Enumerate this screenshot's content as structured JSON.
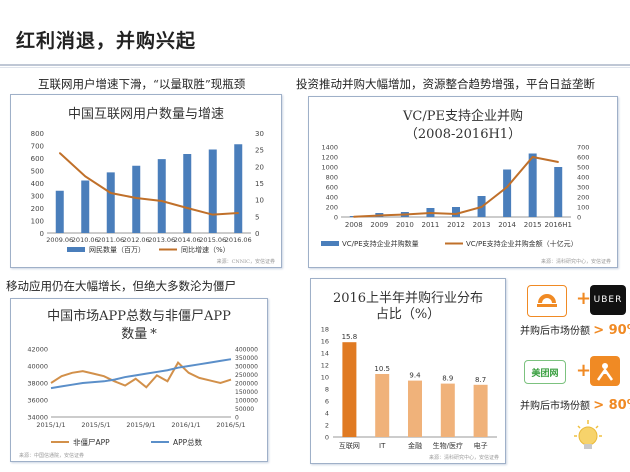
{
  "page": {
    "title": "红利消退，并购兴起",
    "captions": {
      "top_left": "互联网用户增速下滑，“以量取胜”现瓶颈",
      "top_right": "投资推动并购大幅增加，资源整合趋势增强，平台日益垄断",
      "bottom_left": "移动应用仍在大幅增长，但绝大多数沦为僵尸"
    },
    "sources": {
      "c1": "来源：CNNIC，安信证券",
      "c2": "来源：清科研究中心，安信证券",
      "c3": "来源：中国信通院，安信证券",
      "c4": "来源：清科研究中心，安信证券"
    },
    "logos": {
      "uber": "UBER",
      "meituan": "美团网",
      "share1": {
        "text": "并购后市场份额",
        "value": "> 90%"
      },
      "share2": {
        "text": "并购后市场份额",
        "value": "> 80%"
      }
    }
  },
  "chart_data": [
    {
      "id": "c1",
      "type": "bar+line",
      "title": "中国互联网用户数量与增速",
      "categories": [
        "2009.06",
        "2010.06",
        "2011.06",
        "2012.06",
        "2013.06",
        "2014.06",
        "2015.06",
        "2016.06"
      ],
      "series": [
        {
          "name": "网民数量（百万）",
          "type": "bar",
          "axis": "left",
          "color": "#4a7ebb",
          "values": [
            338,
            420,
            485,
            538,
            591,
            632,
            668,
            710
          ]
        },
        {
          "name": "同比增速（%）",
          "type": "line",
          "axis": "right",
          "color": "#c0702a",
          "values": [
            24,
            17,
            12,
            10.5,
            9.6,
            7.5,
            5.5,
            6
          ]
        }
      ],
      "ylim_left": [
        0,
        800
      ],
      "yticks_left": [
        0,
        100,
        200,
        300,
        400,
        500,
        600,
        700,
        800
      ],
      "ylim_right": [
        0,
        30
      ],
      "yticks_right": [
        0,
        5,
        10,
        15,
        20,
        25,
        30
      ]
    },
    {
      "id": "c2",
      "type": "bar+line",
      "title": "VC/PE支持企业并购",
      "subtitle": "（2008-2016H1）",
      "categories": [
        "2008",
        "2009",
        "2010",
        "2011",
        "2012",
        "2013",
        "2014",
        "2015",
        "2016H1"
      ],
      "series": [
        {
          "name": "VC/PE支持企业并购数量",
          "type": "bar",
          "axis": "left",
          "color": "#4a7ebb",
          "values": [
            20,
            80,
            100,
            180,
            200,
            420,
            950,
            1270,
            1000
          ]
        },
        {
          "name": "VC/PE支持企业并购金额（十亿元）",
          "type": "line",
          "axis": "right",
          "color": "#c0702a",
          "values": [
            3,
            15,
            25,
            40,
            30,
            100,
            300,
            600,
            550
          ]
        }
      ],
      "ylim_left": [
        0,
        1400
      ],
      "yticks_left": [
        0,
        200,
        400,
        600,
        800,
        1000,
        1200,
        1400
      ],
      "ylim_right": [
        0,
        700
      ],
      "yticks_right": [
        0,
        100,
        200,
        300,
        400,
        500,
        600,
        700
      ]
    },
    {
      "id": "c3",
      "type": "line",
      "title": "中国市场APP总数与非僵尸APP",
      "subtitle": "数量",
      "x_tick_labels": [
        "2015/1/1",
        "2015/5/1",
        "2015/9/1",
        "2016/1/1",
        "2016/5/1"
      ],
      "series": [
        {
          "name": "非僵尸APP",
          "axis": "left",
          "color": "#d2904a",
          "values": [
            38000,
            38800,
            39200,
            39400,
            39100,
            38800,
            38200,
            37700,
            38500,
            37500,
            38900,
            38200,
            40400,
            39200,
            38600,
            38300,
            38000,
            38400
          ]
        },
        {
          "name": "APP总数",
          "axis": "right",
          "color": "#5b8fc9",
          "values": [
            170000,
            180000,
            190000,
            200000,
            205000,
            210000,
            220000,
            235000,
            245000,
            255000,
            265000,
            275000,
            290000,
            300000,
            310000,
            320000,
            330000,
            340000
          ]
        }
      ],
      "ylim_left": [
        34000,
        42000
      ],
      "yticks_left": [
        34000,
        36000,
        38000,
        40000,
        42000
      ],
      "ylim_right": [
        0,
        400000
      ],
      "yticks_right": [
        0,
        50000,
        100000,
        150000,
        200000,
        250000,
        300000,
        350000,
        400000
      ],
      "annotation": "*"
    },
    {
      "id": "c4",
      "type": "bar",
      "title": "2016上半年并购行业分布",
      "subtitle": "占比（%）",
      "categories": [
        "互联网",
        "IT",
        "金融",
        "生物/医疗",
        "电子"
      ],
      "values": [
        15.8,
        10.5,
        9.4,
        8.9,
        8.7
      ],
      "ylim": [
        0,
        18
      ],
      "yticks": [
        0,
        2,
        4,
        6,
        8,
        10,
        12,
        14,
        16,
        18
      ],
      "colors": [
        "#e07a22",
        "#f0b27a"
      ]
    }
  ]
}
